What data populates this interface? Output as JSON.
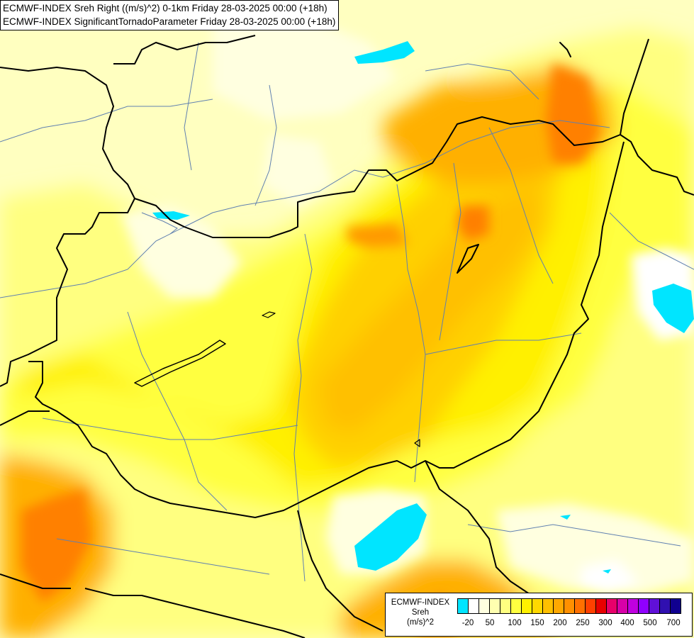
{
  "header": {
    "line1": "ECMWF-INDEX Sreh Right ((m/s)^2) 0-1km Friday 28-03-2025 00:00 (+18h)",
    "line2": "ECMWF-INDEX SignificantTornadoParameter Friday 28-03-2025 00:00 (+18h)"
  },
  "legend": {
    "title": [
      "ECMWF-INDEX",
      "Sreh",
      "(m/s)^2"
    ],
    "colors": [
      "#00e5ff",
      "#ffffff",
      "#ffffe0",
      "#ffffb0",
      "#ffff80",
      "#ffff40",
      "#fff000",
      "#ffd800",
      "#ffc000",
      "#ffa800",
      "#ff9000",
      "#ff7000",
      "#ff4000",
      "#e80000",
      "#e8006a",
      "#d800a8",
      "#c000e0",
      "#9000ff",
      "#6010d8",
      "#3010b0",
      "#100090"
    ],
    "tick_labels": [
      "-20",
      "50",
      "100",
      "150",
      "200",
      "250",
      "300",
      "400",
      "500",
      "700"
    ]
  },
  "map": {
    "background_color": "#ffffc0",
    "border_color": "#000000",
    "river_color": "#6080b0",
    "lake_color": "#00e5ff"
  }
}
